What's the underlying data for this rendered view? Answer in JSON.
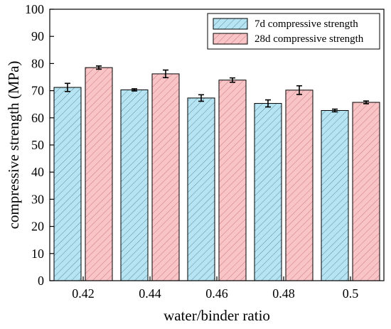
{
  "chart_data": {
    "type": "bar",
    "title": "",
    "xlabel": "water/binder ratio",
    "ylabel": "compressive strength (MPa)",
    "categories": [
      "0.42",
      "0.44",
      "0.46",
      "0.48",
      "0.5"
    ],
    "ylim": [
      0,
      100
    ],
    "yticks": [
      "0",
      "10",
      "20",
      "30",
      "40",
      "50",
      "60",
      "70",
      "80",
      "90",
      "100"
    ],
    "grid": false,
    "legend_position": "top-right",
    "series": [
      {
        "name": "7d   compressive strength",
        "values": [
          71.2,
          70.3,
          67.3,
          65.3,
          62.7
        ],
        "errors": [
          1.5,
          0.4,
          1.2,
          1.3,
          0.5
        ],
        "fill": "#b7e4f2",
        "hatch": "#5a8fa0"
      },
      {
        "name": "28d compressive strength",
        "values": [
          78.5,
          76.2,
          73.9,
          70.2,
          65.7
        ],
        "errors": [
          0.6,
          1.4,
          0.8,
          1.6,
          0.5
        ],
        "fill": "#f9c4c6",
        "hatch": "#c87a80"
      }
    ]
  }
}
